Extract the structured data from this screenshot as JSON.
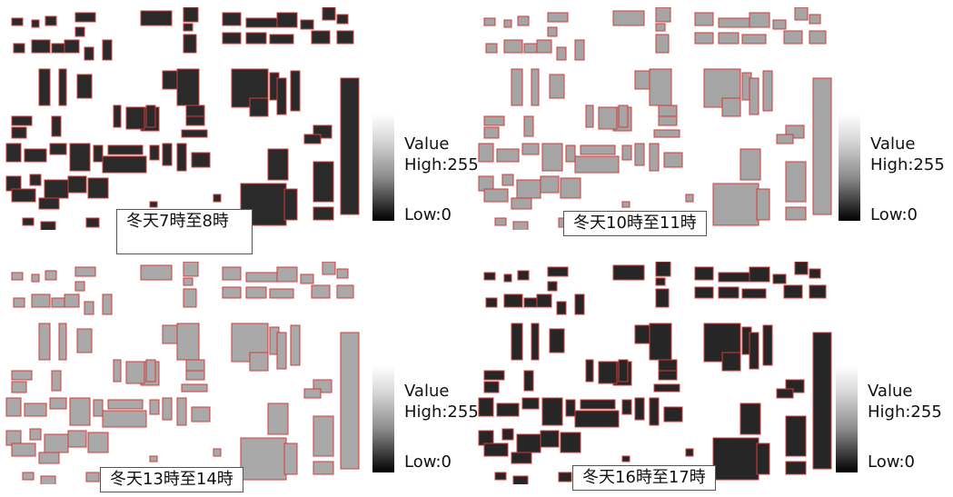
{
  "panels": [
    {
      "id": "p1",
      "caption": "冬天7時至8時",
      "legend_title": "Value",
      "legend_high": "High:255",
      "legend_low": "Low:0",
      "roof_tone": "#2a2a2a"
    },
    {
      "id": "p2",
      "caption": "冬天10時至11時",
      "legend_title": "Value",
      "legend_high": "High:255",
      "legend_low": "Low:0",
      "roof_tone": "#a5a5a5"
    },
    {
      "id": "p3",
      "caption": "冬天13時至14時",
      "legend_title": "Value",
      "legend_high": "High:255",
      "legend_low": "Low:0",
      "roof_tone": "#a9a9a9"
    },
    {
      "id": "p4",
      "caption": "冬天16時至17時",
      "legend_title": "Value",
      "legend_high": "High:255",
      "legend_low": "Low:0",
      "roof_tone": "#262626"
    }
  ],
  "colors": {
    "outline": "#d23b3b",
    "ramp_high": "#ffffff",
    "ramp_low": "#000000"
  }
}
